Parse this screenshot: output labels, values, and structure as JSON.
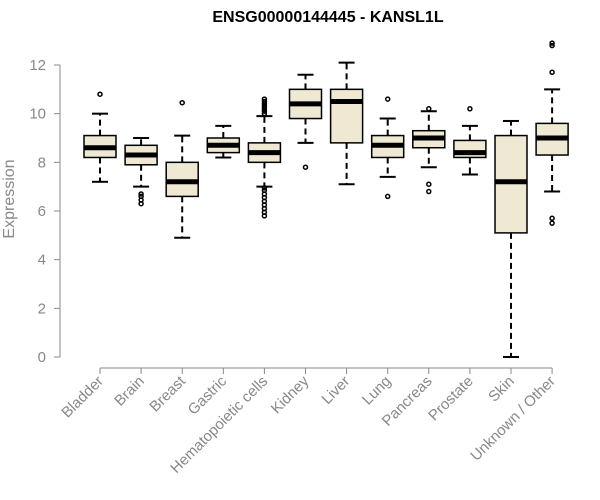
{
  "chart_data": {
    "type": "box",
    "title": "ENSG00000144445 - KANSL1L",
    "xlabel": "",
    "ylabel": "Expression",
    "ylim": [
      0,
      12
    ],
    "yticks": [
      0,
      2,
      4,
      6,
      8,
      10,
      12
    ],
    "categories": [
      "Bladder",
      "Brain",
      "Breast",
      "Gastric",
      "Hematopoietic cells",
      "Kidney",
      "Liver",
      "Lung",
      "Pancreas",
      "Prostate",
      "Skin",
      "Unknown / Other"
    ],
    "boxes": [
      {
        "category": "Bladder",
        "whisker_low": 7.2,
        "q1": 8.2,
        "median": 8.6,
        "q3": 9.1,
        "whisker_high": 10.0,
        "outliers": [
          10.8
        ]
      },
      {
        "category": "Brain",
        "whisker_low": 7.0,
        "q1": 7.9,
        "median": 8.3,
        "q3": 8.7,
        "whisker_high": 9.0,
        "outliers": [
          6.3,
          6.45,
          6.6,
          6.7
        ]
      },
      {
        "category": "Breast",
        "whisker_low": 4.9,
        "q1": 6.6,
        "median": 7.2,
        "q3": 8.0,
        "whisker_high": 9.1,
        "outliers": [
          10.45
        ]
      },
      {
        "category": "Gastric",
        "whisker_low": 8.2,
        "q1": 8.4,
        "median": 8.7,
        "q3": 9.0,
        "whisker_high": 9.5,
        "outliers": []
      },
      {
        "category": "Hematopoietic cells",
        "whisker_low": 7.0,
        "q1": 8.0,
        "median": 8.4,
        "q3": 8.8,
        "whisker_high": 9.9,
        "outliers": [
          5.8,
          5.95,
          6.1,
          6.25,
          6.4,
          6.55,
          6.7,
          6.85,
          6.95,
          10.0,
          10.1,
          10.2,
          10.3,
          10.4,
          10.5,
          10.6
        ]
      },
      {
        "category": "Kidney",
        "whisker_low": 8.8,
        "q1": 9.8,
        "median": 10.4,
        "q3": 11.0,
        "whisker_high": 11.6,
        "outliers": [
          7.8
        ]
      },
      {
        "category": "Liver",
        "whisker_low": 7.1,
        "q1": 8.8,
        "median": 10.5,
        "q3": 11.0,
        "whisker_high": 12.1,
        "outliers": []
      },
      {
        "category": "Lung",
        "whisker_low": 7.4,
        "q1": 8.2,
        "median": 8.7,
        "q3": 9.1,
        "whisker_high": 9.8,
        "outliers": [
          6.6,
          10.6
        ]
      },
      {
        "category": "Pancreas",
        "whisker_low": 7.8,
        "q1": 8.6,
        "median": 9.0,
        "q3": 9.3,
        "whisker_high": 10.1,
        "outliers": [
          6.8,
          7.1,
          10.2
        ]
      },
      {
        "category": "Prostate",
        "whisker_low": 7.5,
        "q1": 8.2,
        "median": 8.4,
        "q3": 8.9,
        "whisker_high": 9.5,
        "outliers": [
          10.2
        ]
      },
      {
        "category": "Skin",
        "whisker_low": 0.0,
        "q1": 5.1,
        "median": 7.2,
        "q3": 9.1,
        "whisker_high": 9.7,
        "outliers": []
      },
      {
        "category": "Unknown / Other",
        "whisker_low": 6.8,
        "q1": 8.3,
        "median": 9.0,
        "q3": 9.6,
        "whisker_high": 11.0,
        "outliers": [
          5.5,
          5.7,
          11.7,
          12.8,
          12.9
        ]
      }
    ],
    "box_fill": "#efe8d2",
    "box_stroke": "#000000",
    "median_color": "#000000",
    "axis_color": "#888888",
    "grid": false,
    "legend": "none"
  }
}
